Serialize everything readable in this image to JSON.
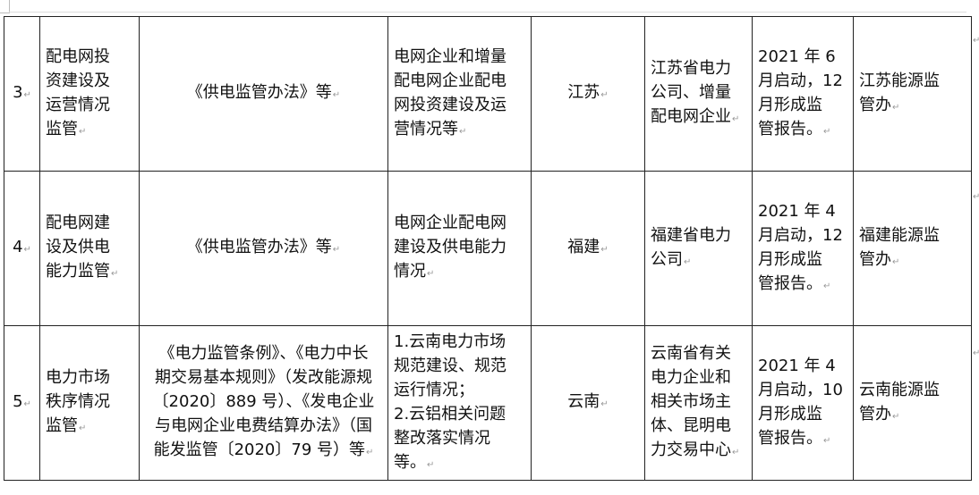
{
  "rows": [
    {
      "no": "3",
      "item": [
        "配电网投",
        "资建设及",
        "运营情况",
        "监管"
      ],
      "basis": [
        "《供电监管办法》等"
      ],
      "content": [
        "电网企业和增量",
        "配电网企业配电",
        "网投资建设及运",
        "营情况等"
      ],
      "region": [
        "江苏"
      ],
      "target": [
        "江苏省电力",
        "公司、增量",
        "配电网企业"
      ],
      "time": [
        "2021 年 6",
        "月启动，12",
        "月形成监",
        "管报告。"
      ],
      "org": [
        "江苏能源监",
        "管办"
      ]
    },
    {
      "no": "4",
      "item": [
        "配电网建",
        "设及供电",
        "能力监管"
      ],
      "basis": [
        "《供电监管办法》等"
      ],
      "content": [
        "电网企业配电网",
        "建设及供电能力",
        "情况"
      ],
      "region": [
        "福建"
      ],
      "target": [
        "福建省电力",
        "公司"
      ],
      "time": [
        "2021 年 4",
        "月启动，12",
        "月形成监",
        "管报告。"
      ],
      "org": [
        "福建能源监",
        "管办"
      ]
    },
    {
      "no": "5",
      "item": [
        "电力市场",
        "秩序情况",
        "监管"
      ],
      "basis": [
        "《电力监管条例》、《电力中长",
        "期交易基本规则》（发改能源规",
        "〔2020〕889 号）、《发电企业",
        "与电网企业电费结算办法》（国",
        "能发监管〔2020〕79 号）等"
      ],
      "content": [
        "1.云南电力市场",
        "规范建设、规范",
        "运行情况；",
        "2.云铝相关问题",
        "整改落实情况",
        "等。"
      ],
      "region": [
        "云南"
      ],
      "target": [
        "云南省有关",
        "电力企业和",
        "相关市场主",
        "体、昆明电",
        "力交易中心"
      ],
      "time": [
        "2021 年 4",
        "月启动，10",
        "月形成监",
        "管报告。"
      ],
      "org": [
        "云南能源监",
        "管办"
      ]
    }
  ]
}
